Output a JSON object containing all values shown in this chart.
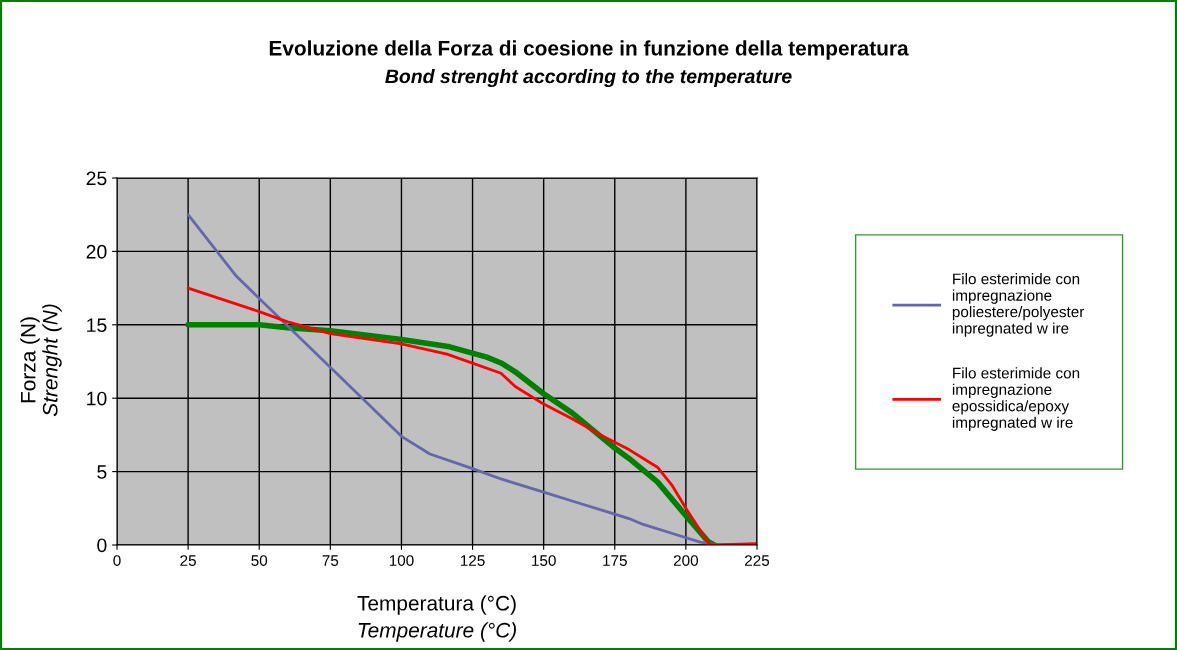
{
  "chart_data": {
    "type": "line",
    "title": "Evoluzione della Forza di coesione in funzione della temperatura",
    "subtitle": "Bond strenght according to the temperature",
    "xlabel": "Temperatura (°C)\nTemperature (°C)",
    "ylabel": "Forza (N)\nStrenght (N)",
    "xlim": [
      0,
      225
    ],
    "xticks": [
      0,
      25,
      50,
      75,
      100,
      125,
      150,
      175,
      200,
      225
    ],
    "ylim": [
      0,
      25
    ],
    "yticks": [
      0,
      5,
      10,
      15,
      20,
      25
    ],
    "grid": true,
    "legend": "right",
    "marker": "none",
    "line_style": "solid",
    "series": [
      {
        "color": "#008000",
        "x": [
          25,
          50,
          60,
          75,
          100,
          117,
          130,
          135,
          140,
          150,
          160,
          175,
          180,
          190,
          200,
          208,
          210
        ],
        "values": [
          15,
          15,
          14.8,
          14.6,
          14,
          13.5,
          12.8,
          12.4,
          11.8,
          10.3,
          9.0,
          6.6,
          5.9,
          4.3,
          2.0,
          0.2,
          0
        ]
      },
      {
        "name": "Filo esterimide con impregnazione poliestere/polyester inpregnated w ire",
        "color": "#6666aa",
        "x": [
          25,
          42,
          100,
          110,
          125,
          135,
          140,
          150,
          160,
          175,
          180,
          185,
          195,
          205,
          212,
          225
        ],
        "values": [
          22.5,
          18.3,
          7.4,
          6.2,
          5.2,
          4.5,
          4.2,
          3.6,
          3.0,
          2.1,
          1.8,
          1.4,
          0.8,
          0.2,
          0,
          0
        ]
      },
      {
        "name": "Filo esterimide con impregnazione epossidica/epoxy impregnated w ire",
        "color": "#ff0000",
        "x": [
          25,
          50,
          60,
          75,
          100,
          116,
          135,
          140,
          150,
          160,
          170,
          175,
          180,
          190,
          195,
          200,
          205,
          208,
          210,
          225
        ],
        "values": [
          17.5,
          15.9,
          15.2,
          14.4,
          13.7,
          13.0,
          11.7,
          10.8,
          9.6,
          8.6,
          7.5,
          7.0,
          6.5,
          5.3,
          4.1,
          2.5,
          1.0,
          0.1,
          0,
          0.1
        ]
      }
    ]
  }
}
